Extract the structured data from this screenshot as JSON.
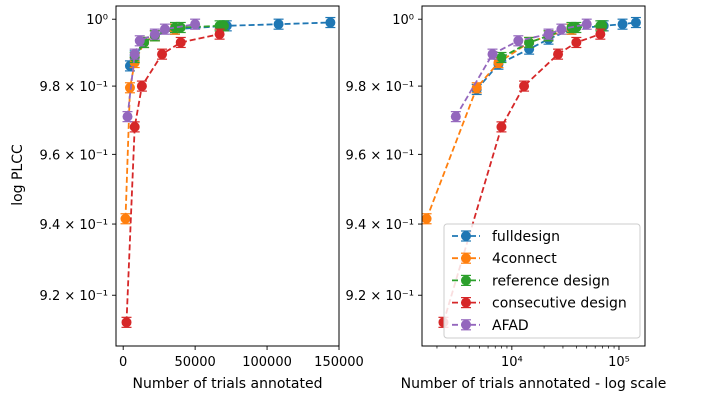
{
  "figure": {
    "ylabel": "log PLCC",
    "series_styles": [
      {
        "name": "fulldesign",
        "color": "#1f77b4"
      },
      {
        "name": "4connect",
        "color": "#ff7f0e"
      },
      {
        "name": "reference design",
        "color": "#2ca02c"
      },
      {
        "name": "consecutive design",
        "color": "#d62728"
      },
      {
        "name": "AFAD",
        "color": "#9467bd"
      }
    ],
    "legend": {
      "placement": "lower right",
      "in_panel": 2
    }
  },
  "chart_data": [
    {
      "type": "line",
      "xlabel": "Number of trials annotated",
      "ylabel": "log PLCC",
      "xscale": "linear",
      "yscale": "log",
      "xlim": [
        -5000,
        150000
      ],
      "ylim": [
        0.906,
        1.004
      ],
      "xticks": [
        0,
        50000,
        100000,
        150000
      ],
      "xtick_labels": [
        "0",
        "50000",
        "100000",
        "150000"
      ],
      "yticks": [
        0.92,
        0.94,
        0.96,
        0.98,
        1.0
      ],
      "ytick_labels": [
        "9.2 × 10⁻¹",
        "9.4 × 10⁻¹",
        "9.6 × 10⁻¹",
        "9.8 × 10⁻¹",
        "10⁰"
      ],
      "grid": false,
      "legend": false,
      "series": [
        {
          "name": "fulldesign",
          "x": [
            4700,
            8000,
            14500,
            22000,
            36000,
            72000,
            108000,
            144000
          ],
          "y": [
            0.986,
            0.989,
            0.993,
            0.995,
            0.997,
            0.998,
            0.9985,
            0.999
          ]
        },
        {
          "name": "4connect",
          "x": [
            1600,
            4700,
            8000,
            14500,
            22000,
            36000
          ],
          "y": [
            0.9415,
            0.9795,
            0.987,
            0.993,
            0.995,
            0.997
          ]
        },
        {
          "name": "reference design",
          "x": [
            8000,
            14500,
            22000,
            36000,
            40000,
            67000,
            70000
          ],
          "y": [
            0.9885,
            0.993,
            0.995,
            0.9975,
            0.9975,
            0.998,
            0.998
          ]
        },
        {
          "name": "consecutive design",
          "x": [
            2300,
            8000,
            13000,
            27000,
            40000,
            67000
          ],
          "y": [
            0.9125,
            0.968,
            0.98,
            0.9895,
            0.993,
            0.9955
          ]
        },
        {
          "name": "AFAD",
          "x": [
            3000,
            8000,
            11500,
            22000,
            29000,
            50000
          ],
          "y": [
            0.971,
            0.9895,
            0.9935,
            0.9955,
            0.997,
            0.9985
          ]
        }
      ]
    },
    {
      "type": "line",
      "xlabel": "Number of trials annotated - log scale",
      "ylabel": "",
      "xscale": "log",
      "yscale": "log",
      "xlim": [
        1450,
        175000
      ],
      "ylim": [
        0.906,
        1.004
      ],
      "xticks": [
        10000,
        100000
      ],
      "xtick_labels": [
        "10⁴",
        "10⁵"
      ],
      "yticks": [
        0.92,
        0.94,
        0.96,
        0.98,
        1.0
      ],
      "ytick_labels": [
        "9.2 × 10⁻¹",
        "9.4 × 10⁻¹",
        "9.6 × 10⁻¹",
        "9.8 × 10⁻¹",
        "10⁰"
      ],
      "grid": false,
      "legend": true,
      "legend_placement": "lower right",
      "series": [
        {
          "name": "fulldesign",
          "x": [
            4700,
            7500,
            14500,
            22000,
            36000,
            72000,
            108000,
            144000
          ],
          "y": [
            0.979,
            0.9865,
            0.991,
            0.994,
            0.997,
            0.998,
            0.9985,
            0.999
          ]
        },
        {
          "name": "4connect",
          "x": [
            1600,
            4700,
            7500,
            14500,
            22000,
            36000
          ],
          "y": [
            0.9415,
            0.9795,
            0.987,
            0.993,
            0.995,
            0.997
          ]
        },
        {
          "name": "reference design",
          "x": [
            8000,
            14500,
            22000,
            36000,
            40000,
            67000,
            70000
          ],
          "y": [
            0.9885,
            0.993,
            0.995,
            0.9975,
            0.9975,
            0.998,
            0.998
          ]
        },
        {
          "name": "consecutive design",
          "x": [
            2300,
            8000,
            13000,
            27000,
            40000,
            67000
          ],
          "y": [
            0.9125,
            0.968,
            0.98,
            0.9895,
            0.993,
            0.9955
          ]
        },
        {
          "name": "AFAD",
          "x": [
            3000,
            6600,
            11500,
            22000,
            29000,
            50000
          ],
          "y": [
            0.971,
            0.9895,
            0.9935,
            0.9955,
            0.997,
            0.9985
          ]
        }
      ]
    }
  ]
}
